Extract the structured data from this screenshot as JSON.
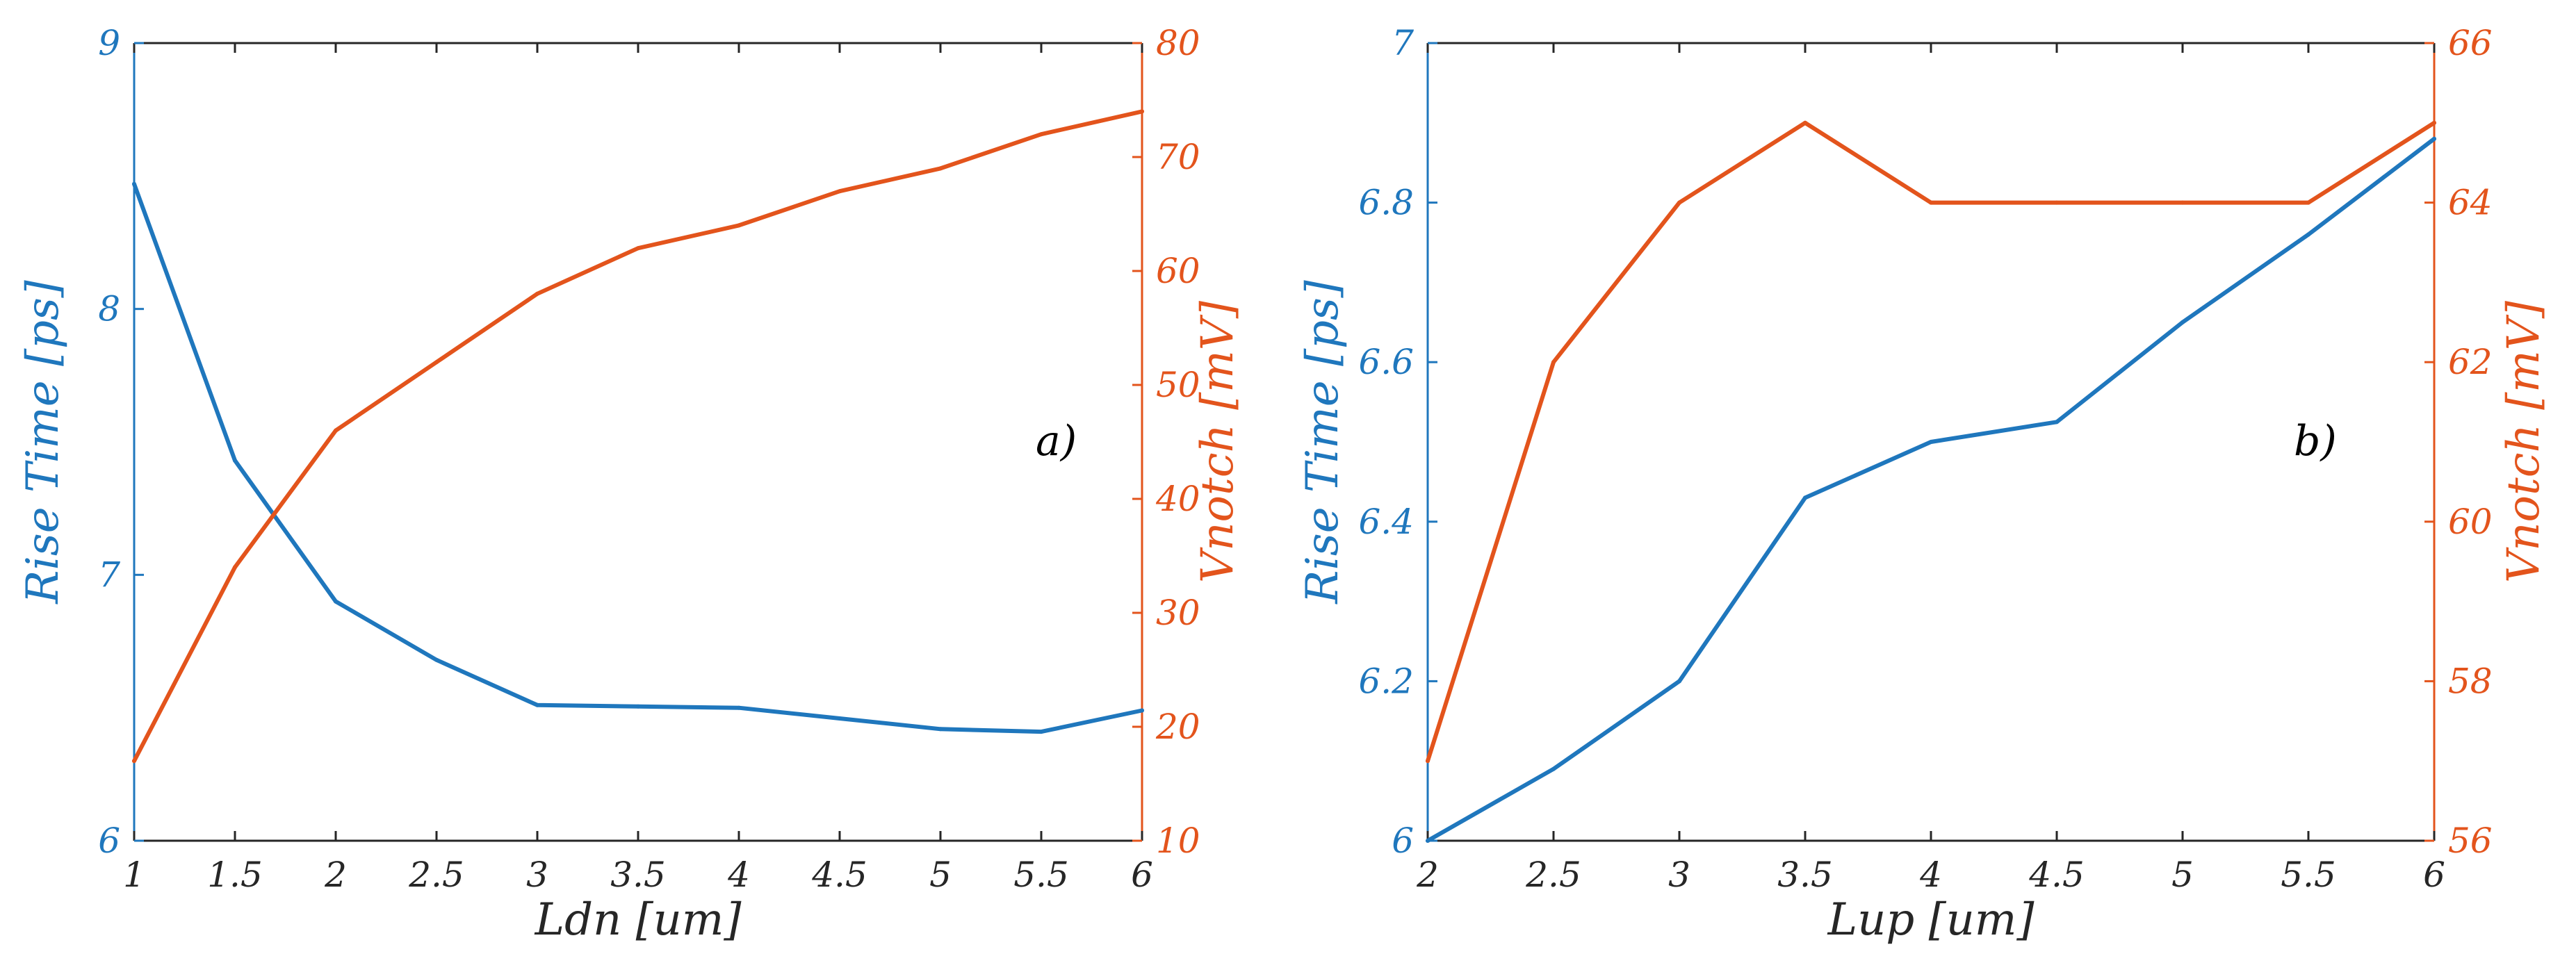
{
  "colors": {
    "left_axis": "#1f77bd",
    "right_axis": "#e3541c",
    "axis": "#262626",
    "annotation": "#000000"
  },
  "chart_data": [
    {
      "type": "line",
      "annotation": "a)",
      "xlabel": "Ldn [um]",
      "ylabel_left": "Rise Time [ps]",
      "ylabel_right": "Vnotch [mV]",
      "xlim": [
        1,
        6
      ],
      "ylim_left": [
        6,
        9
      ],
      "ylim_right": [
        10,
        80
      ],
      "x_ticks": [
        "1",
        "1.5",
        "2",
        "2.5",
        "3",
        "3.5",
        "4",
        "4.5",
        "5",
        "5.5",
        "6"
      ],
      "y_left_ticks": [
        "6",
        "7",
        "8",
        "9"
      ],
      "y_right_ticks": [
        "10",
        "20",
        "30",
        "40",
        "50",
        "60",
        "70",
        "80"
      ],
      "grid": false,
      "x": [
        1,
        1.5,
        2,
        2.5,
        3,
        3.5,
        4,
        4.5,
        5,
        5.5,
        6
      ],
      "series": [
        {
          "axis": "left",
          "color": "#1f77bd",
          "values": [
            8.47,
            7.43,
            6.9,
            6.68,
            6.51,
            6.505,
            6.5,
            6.46,
            6.42,
            6.41,
            6.49
          ]
        },
        {
          "axis": "right",
          "color": "#e3541c",
          "values": [
            17,
            34,
            46,
            52,
            58,
            62,
            64,
            67,
            69,
            72,
            74
          ]
        }
      ]
    },
    {
      "type": "line",
      "annotation": "b)",
      "xlabel": "Lup [um]",
      "ylabel_left": "Rise Time [ps]",
      "ylabel_right": "Vnotch [mV]",
      "xlim": [
        2,
        6
      ],
      "ylim_left": [
        6,
        7
      ],
      "ylim_right": [
        56,
        66
      ],
      "x_ticks": [
        "2",
        "2.5",
        "3",
        "3.5",
        "4",
        "4.5",
        "5",
        "5.5",
        "6"
      ],
      "y_left_ticks": [
        "6",
        "6.2",
        "6.4",
        "6.6",
        "6.8",
        "7"
      ],
      "y_right_ticks": [
        "56",
        "58",
        "60",
        "62",
        "64",
        "66"
      ],
      "grid": false,
      "x": [
        2,
        2.5,
        3,
        3.5,
        4,
        4.5,
        5,
        5.5,
        6
      ],
      "series": [
        {
          "axis": "left",
          "color": "#1f77bd",
          "values": [
            6.0,
            6.09,
            6.2,
            6.43,
            6.5,
            6.525,
            6.65,
            6.76,
            6.88
          ]
        },
        {
          "axis": "right",
          "color": "#e3541c",
          "values": [
            57,
            62,
            64,
            65,
            64,
            64,
            64,
            64,
            65
          ]
        }
      ]
    }
  ]
}
